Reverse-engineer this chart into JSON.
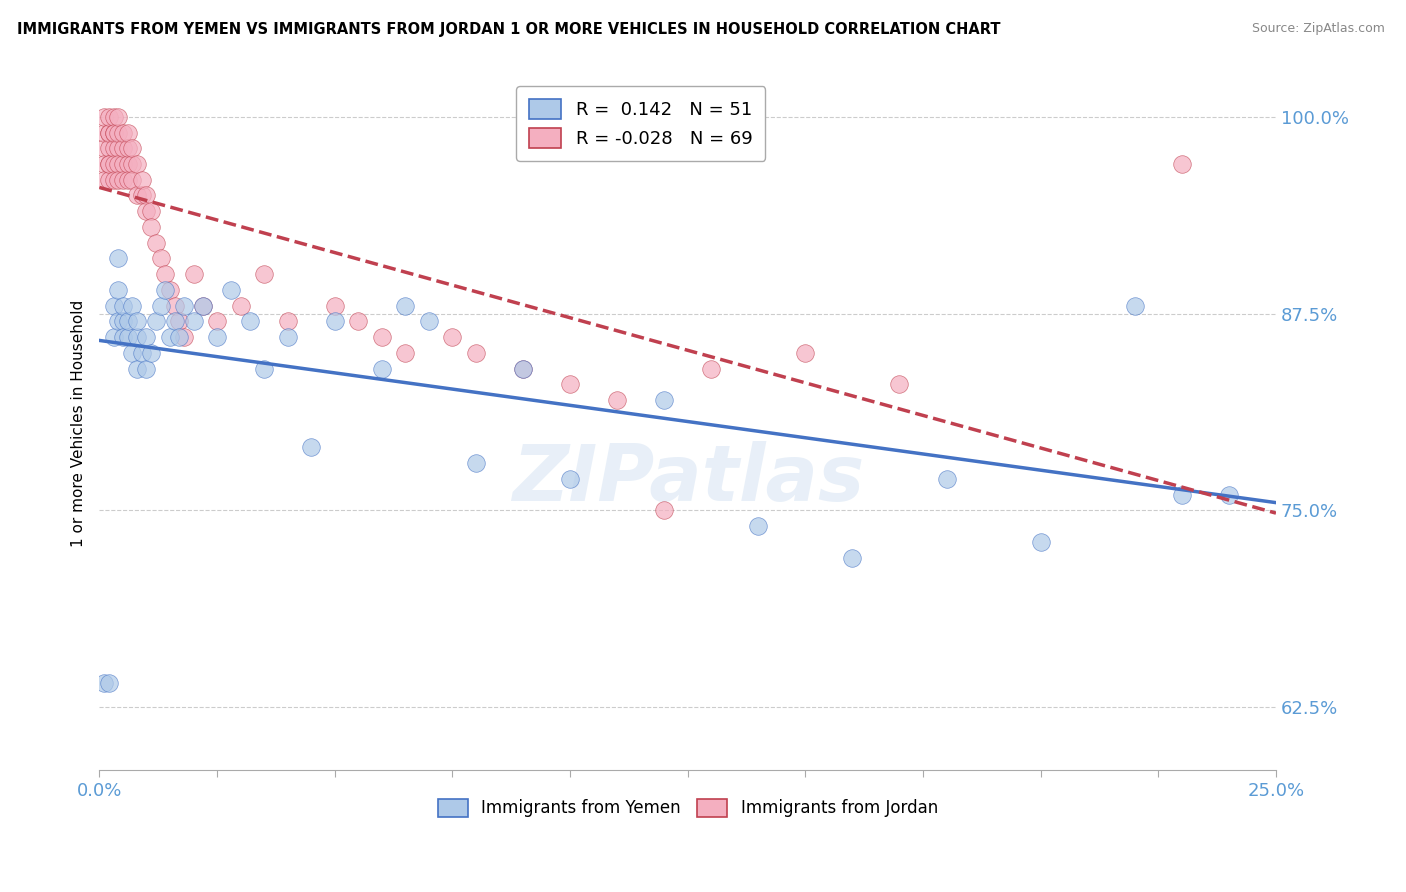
{
  "title": "IMMIGRANTS FROM YEMEN VS IMMIGRANTS FROM JORDAN 1 OR MORE VEHICLES IN HOUSEHOLD CORRELATION CHART",
  "source": "Source: ZipAtlas.com",
  "ylabel_label": "1 or more Vehicles in Household",
  "legend_yemen": "Immigrants from Yemen",
  "legend_jordan": "Immigrants from Jordan",
  "R_yemen": 0.142,
  "N_yemen": 51,
  "R_jordan": -0.028,
  "N_jordan": 69,
  "xlim": [
    0.0,
    0.25
  ],
  "ylim": [
    0.585,
    1.025
  ],
  "yticks": [
    0.625,
    0.75,
    0.875,
    1.0
  ],
  "xticks": [
    0.0,
    0.025,
    0.05,
    0.075,
    0.1,
    0.125,
    0.15,
    0.175,
    0.2,
    0.225,
    0.25
  ],
  "color_yemen": "#aec9e8",
  "color_jordan": "#f4afc0",
  "trendline_yemen": "#4472c4",
  "trendline_jordan": "#c0404f",
  "watermark": "ZIPatlas",
  "yemen_x": [
    0.001,
    0.002,
    0.003,
    0.003,
    0.004,
    0.004,
    0.004,
    0.005,
    0.005,
    0.005,
    0.006,
    0.006,
    0.007,
    0.007,
    0.008,
    0.008,
    0.008,
    0.009,
    0.01,
    0.01,
    0.011,
    0.012,
    0.013,
    0.014,
    0.015,
    0.016,
    0.017,
    0.018,
    0.02,
    0.022,
    0.025,
    0.028,
    0.032,
    0.035,
    0.04,
    0.045,
    0.05,
    0.06,
    0.065,
    0.07,
    0.08,
    0.09,
    0.1,
    0.12,
    0.14,
    0.16,
    0.18,
    0.2,
    0.22,
    0.23,
    0.24
  ],
  "yemen_y": [
    0.64,
    0.64,
    0.86,
    0.88,
    0.87,
    0.89,
    0.91,
    0.87,
    0.86,
    0.88,
    0.86,
    0.87,
    0.85,
    0.88,
    0.84,
    0.86,
    0.87,
    0.85,
    0.84,
    0.86,
    0.85,
    0.87,
    0.88,
    0.89,
    0.86,
    0.87,
    0.86,
    0.88,
    0.87,
    0.88,
    0.86,
    0.89,
    0.87,
    0.84,
    0.86,
    0.79,
    0.87,
    0.84,
    0.88,
    0.87,
    0.78,
    0.84,
    0.77,
    0.82,
    0.74,
    0.72,
    0.77,
    0.73,
    0.88,
    0.76,
    0.76
  ],
  "jordan_x": [
    0.001,
    0.001,
    0.001,
    0.001,
    0.001,
    0.002,
    0.002,
    0.002,
    0.002,
    0.002,
    0.002,
    0.002,
    0.003,
    0.003,
    0.003,
    0.003,
    0.003,
    0.003,
    0.004,
    0.004,
    0.004,
    0.004,
    0.004,
    0.005,
    0.005,
    0.005,
    0.005,
    0.006,
    0.006,
    0.006,
    0.006,
    0.007,
    0.007,
    0.007,
    0.008,
    0.008,
    0.009,
    0.009,
    0.01,
    0.01,
    0.011,
    0.011,
    0.012,
    0.013,
    0.014,
    0.015,
    0.016,
    0.017,
    0.018,
    0.02,
    0.022,
    0.025,
    0.03,
    0.035,
    0.04,
    0.05,
    0.055,
    0.06,
    0.065,
    0.075,
    0.08,
    0.09,
    0.1,
    0.11,
    0.12,
    0.13,
    0.15,
    0.17,
    0.23
  ],
  "jordan_y": [
    0.98,
    0.97,
    0.99,
    1.0,
    0.96,
    0.99,
    0.98,
    0.97,
    0.96,
    0.99,
    1.0,
    0.97,
    0.99,
    0.98,
    0.97,
    0.96,
    1.0,
    0.99,
    0.98,
    0.97,
    0.96,
    0.99,
    1.0,
    0.97,
    0.98,
    0.96,
    0.99,
    0.97,
    0.98,
    0.96,
    0.99,
    0.97,
    0.96,
    0.98,
    0.97,
    0.95,
    0.95,
    0.96,
    0.95,
    0.94,
    0.94,
    0.93,
    0.92,
    0.91,
    0.9,
    0.89,
    0.88,
    0.87,
    0.86,
    0.9,
    0.88,
    0.87,
    0.88,
    0.9,
    0.87,
    0.88,
    0.87,
    0.86,
    0.85,
    0.86,
    0.85,
    0.84,
    0.83,
    0.82,
    0.75,
    0.84,
    0.85,
    0.83,
    0.97
  ]
}
